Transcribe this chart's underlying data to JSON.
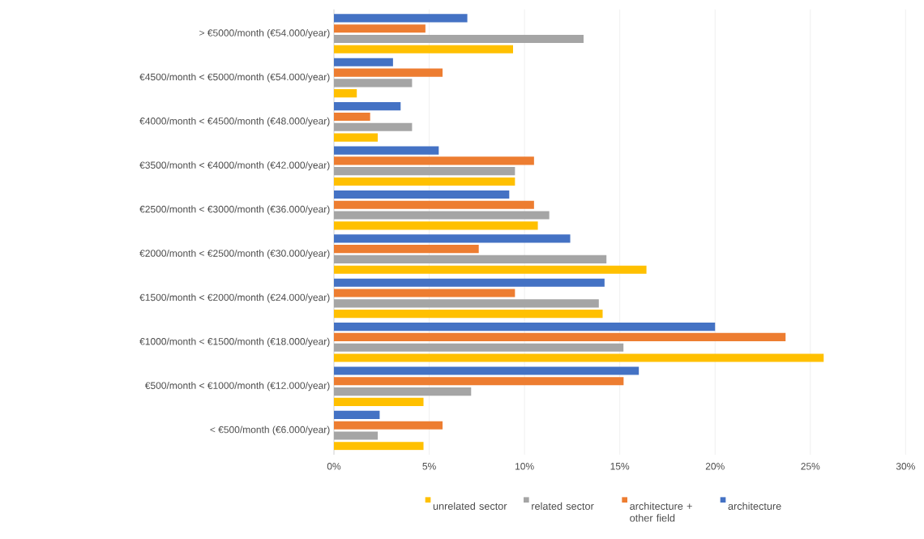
{
  "chart_data": {
    "type": "bar",
    "orientation": "horizontal",
    "categories": [
      "> €5000/month (€54.000/year)",
      "€4500/month < €5000/month (€54.000/year)",
      "€4000/month < €4500/month (€48.000/year)",
      "€3500/month < €4000/month (€42.000/year)",
      "€2500/month < €3000/month (€36.000/year)",
      "€2000/month < €2500/month (€30.000/year)",
      "€1500/month < €2000/month (€24.000/year)",
      "€1000/month < €1500/month (€18.000/year)",
      "€500/month < €1000/month (€12.000/year)",
      "< €500/month (€6.000/year)"
    ],
    "series": [
      {
        "name": "unrelated sector",
        "color": "#ffc000",
        "values": [
          9.4,
          1.2,
          2.3,
          9.5,
          10.7,
          16.4,
          14.1,
          25.7,
          4.7,
          4.7
        ]
      },
      {
        "name": "related sector",
        "color": "#a5a5a5",
        "values": [
          13.1,
          4.1,
          4.1,
          9.5,
          11.3,
          14.3,
          13.9,
          15.2,
          7.2,
          2.3
        ]
      },
      {
        "name": "architecture + other field",
        "color": "#ed7d31",
        "values": [
          4.8,
          5.7,
          1.9,
          10.5,
          10.5,
          7.6,
          9.5,
          23.7,
          15.2,
          5.7
        ]
      },
      {
        "name": "architecture",
        "color": "#4472c4",
        "values": [
          7.0,
          3.1,
          3.5,
          5.5,
          9.2,
          12.4,
          14.2,
          20.0,
          16.0,
          2.4
        ]
      }
    ],
    "xlim": [
      0,
      30
    ],
    "xticks": [
      {
        "value": 0,
        "label": "0%"
      },
      {
        "value": 5,
        "label": "5%"
      },
      {
        "value": 10,
        "label": "10%"
      },
      {
        "value": 15,
        "label": "15%"
      },
      {
        "value": 20,
        "label": "20%"
      },
      {
        "value": 25,
        "label": "25%"
      },
      {
        "value": 30,
        "label": "30%"
      }
    ],
    "grid": "x",
    "legend": "bottom"
  }
}
